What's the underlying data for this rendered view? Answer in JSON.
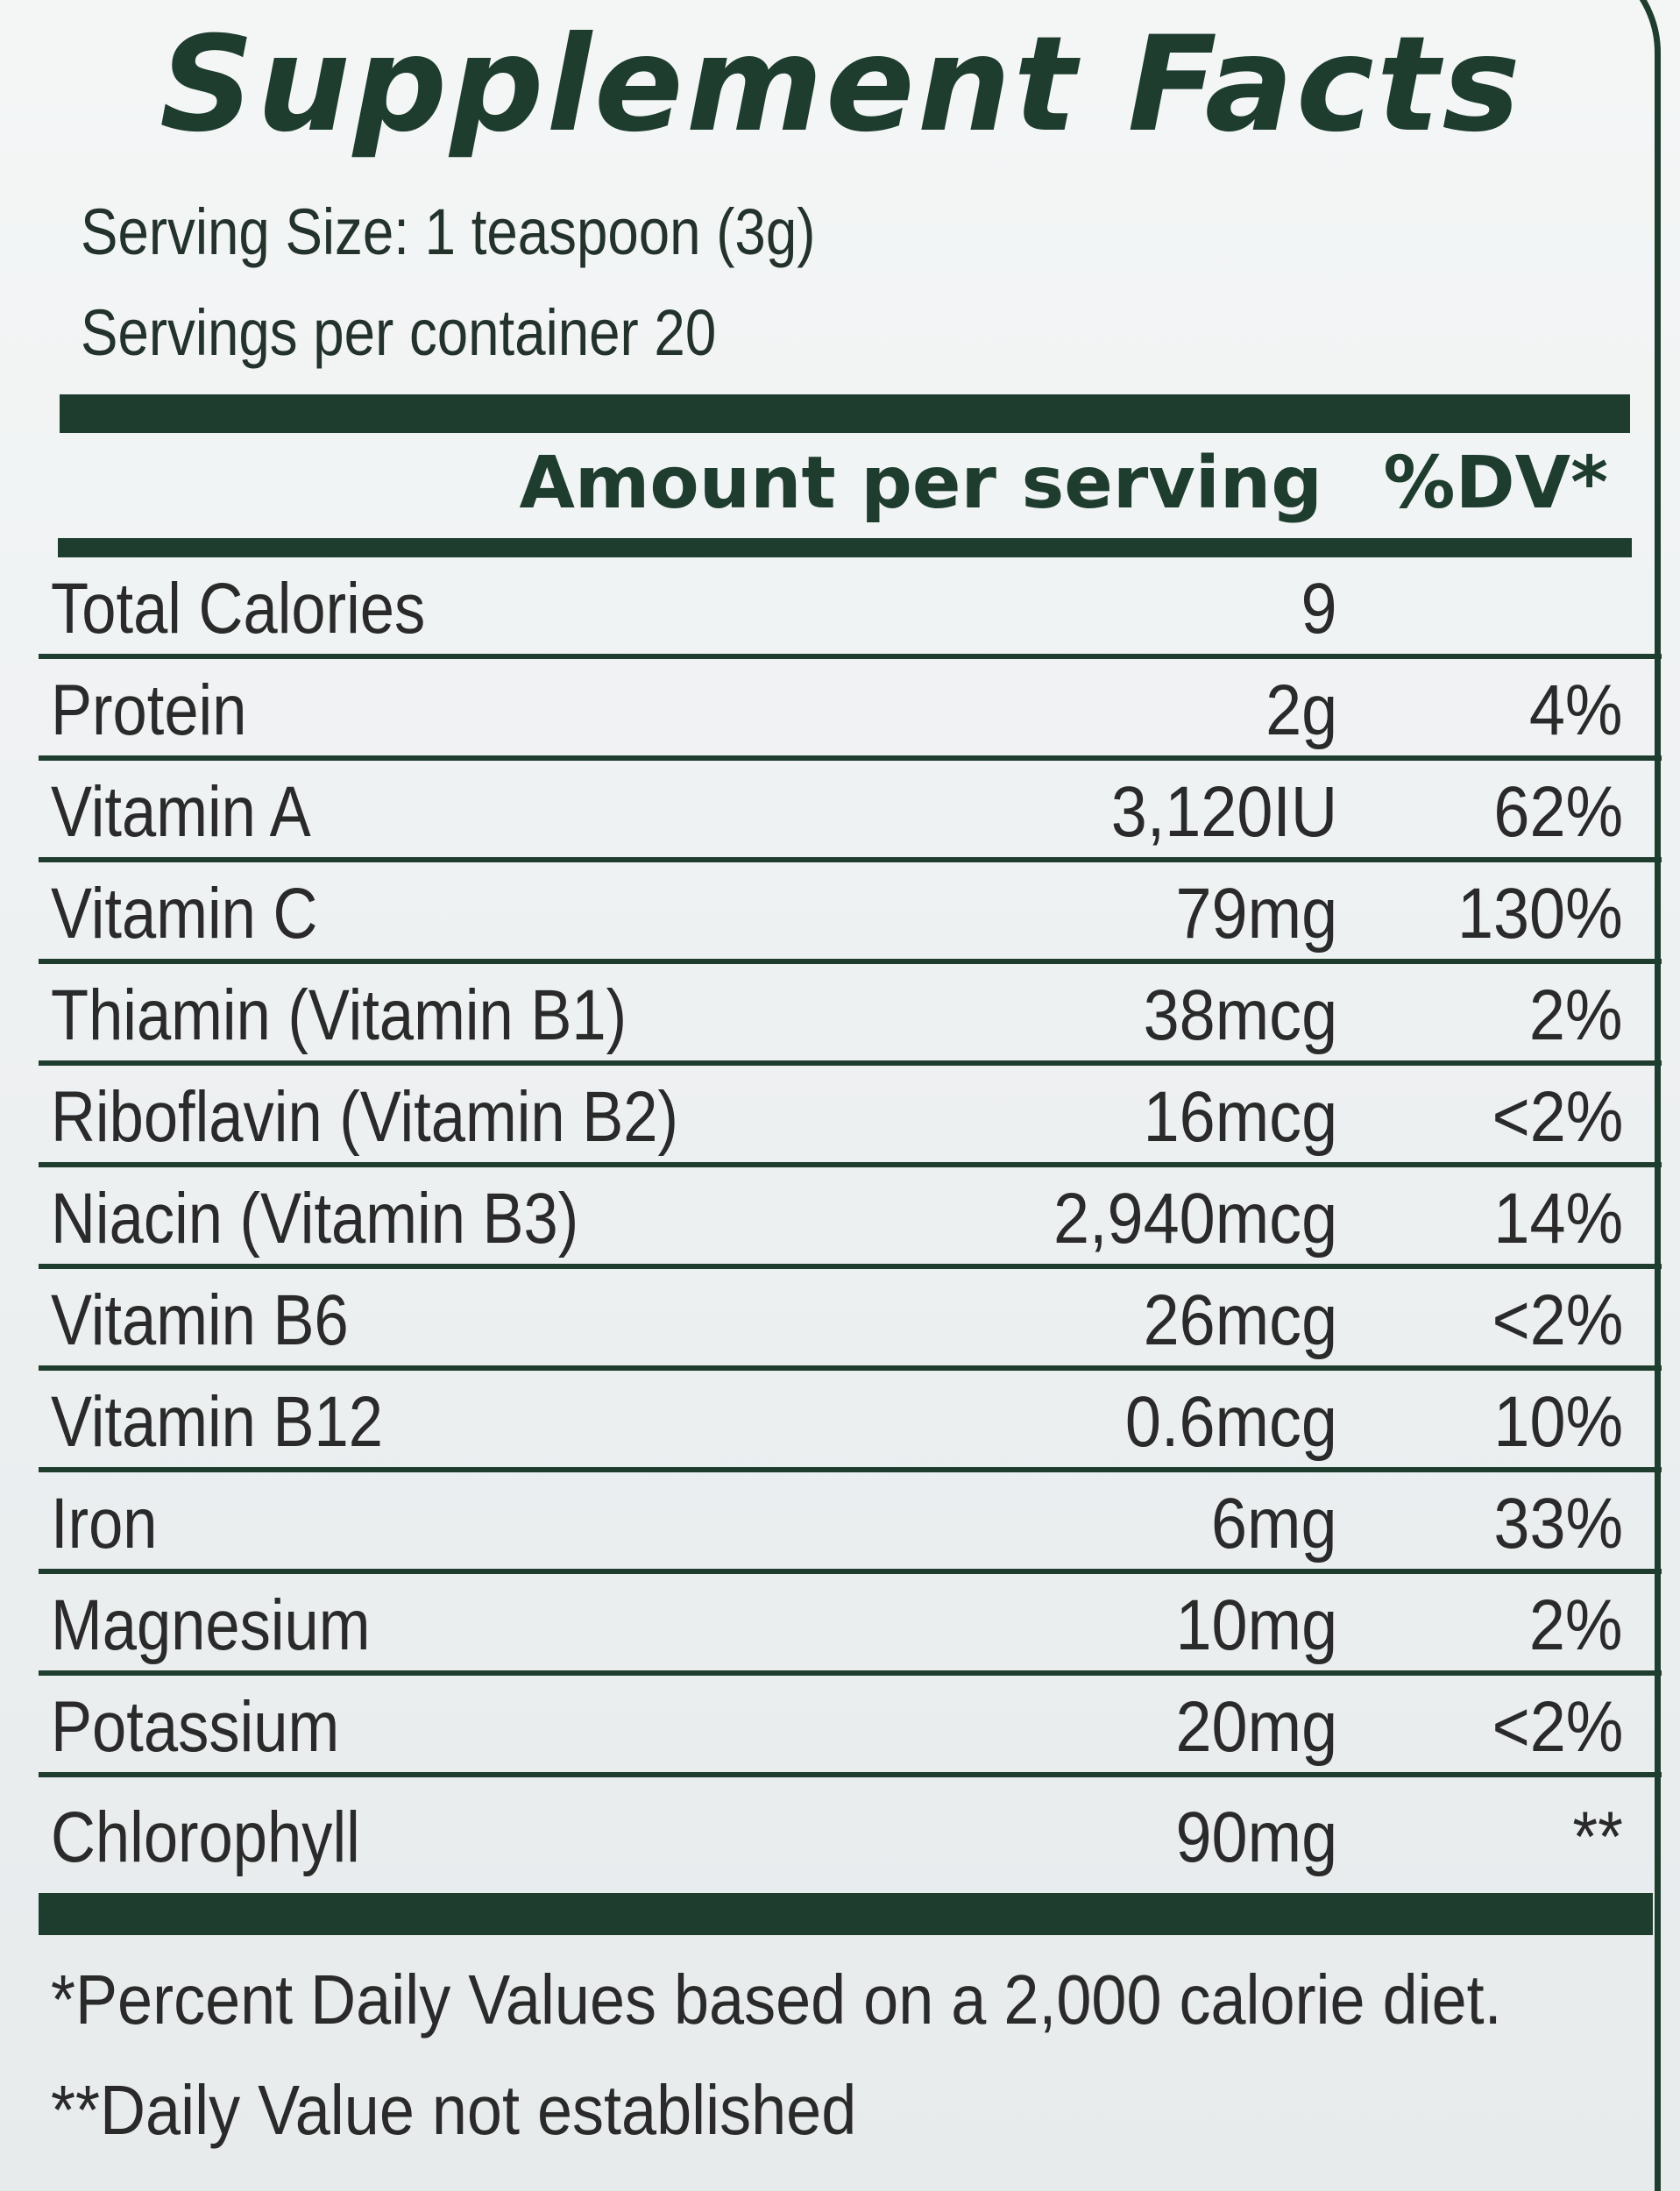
{
  "label": {
    "title": "Supplement Facts",
    "serving_size": "Serving Size: 1 teaspoon (3g)",
    "servings_per_container": "Servings per container 20",
    "header": {
      "amount": "Amount per serving",
      "dv": "%DV*"
    },
    "rows": [
      {
        "name": "Total Calories",
        "amount": "9",
        "dv": ""
      },
      {
        "name": "Protein",
        "amount": "2g",
        "dv": "4%"
      },
      {
        "name": "Vitamin A",
        "amount": "3,120IU",
        "dv": "62%"
      },
      {
        "name": "Vitamin C",
        "amount": "79mg",
        "dv": "130%"
      },
      {
        "name": "Thiamin (Vitamin B1)",
        "amount": "38mcg",
        "dv": "2%"
      },
      {
        "name": "Riboflavin (Vitamin B2)",
        "amount": "16mcg",
        "dv": "<2%"
      },
      {
        "name": "Niacin (Vitamin B3)",
        "amount": "2,940mcg",
        "dv": "14%"
      },
      {
        "name": "Vitamin B6",
        "amount": "26mcg",
        "dv": "<2%"
      },
      {
        "name": "Vitamin B12",
        "amount": "0.6mcg",
        "dv": "10%"
      },
      {
        "name": "Iron",
        "amount": "6mg",
        "dv": "33%"
      },
      {
        "name": "Magnesium",
        "amount": "10mg",
        "dv": "2%"
      },
      {
        "name": "Potassium",
        "amount": "20mg",
        "dv": "<2%"
      },
      {
        "name": "Chlorophyll",
        "amount": "90mg",
        "dv": "**"
      }
    ],
    "footnotes": [
      "*Percent Daily Values based on a 2,000 calorie diet.",
      "**Daily Value not established"
    ]
  },
  "colors": {
    "ink_green": "#1e3d2f",
    "text": "#2a2a2a",
    "background": "#eef1f2"
  }
}
